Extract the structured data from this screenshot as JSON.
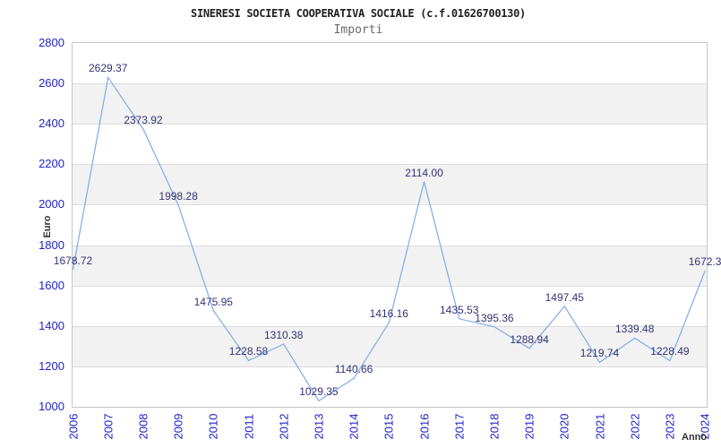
{
  "header": {
    "title": "SINERESI SOCIETA COOPERATIVA SOCIALE (c.f.01626700130)",
    "subtitle": "Importi"
  },
  "chart_data": {
    "type": "line",
    "title": "SINERESI SOCIETA COOPERATIVA SOCIALE (c.f.01626700130)",
    "subtitle": "Importi",
    "xlabel": "Anno",
    "ylabel": "Euro",
    "categories": [
      "2006",
      "2007",
      "2008",
      "2009",
      "2010",
      "2011",
      "2012",
      "2013",
      "2014",
      "2015",
      "2016",
      "2017",
      "2018",
      "2019",
      "2020",
      "2021",
      "2022",
      "2023",
      "2024"
    ],
    "values": [
      1678.72,
      2629.37,
      2373.92,
      1998.28,
      1475.95,
      1228.58,
      1310.38,
      1029.35,
      1140.66,
      1416.16,
      2114.0,
      1435.53,
      1395.36,
      1288.94,
      1497.45,
      1219.74,
      1339.48,
      1228.49,
      1672.3
    ],
    "point_labels": [
      "1678.72",
      "2629.37",
      "2373.92",
      "1998.28",
      "1475.95",
      "1228.58",
      "1310.38",
      "1029.35",
      "1140.66",
      "1416.16",
      "2114.00",
      "1435.53",
      "1395.36",
      "1288.94",
      "1497.45",
      "1219.74",
      "1339.48",
      "1228.49",
      "1672.3"
    ],
    "ylim": [
      1000,
      2800
    ],
    "ytick_step": 200,
    "grid": "horizontal-bands-alternating",
    "legend": "none",
    "colors": {
      "line": "#7fabe8",
      "axis_label": "#2222cc",
      "point_label": "#333377",
      "band": "#f2f2f2",
      "gridline": "#dcdcdc",
      "border": "#c6c6c6",
      "title": "#1f1f1f",
      "subtitle": "#696969",
      "axis_title": "#333333"
    }
  }
}
